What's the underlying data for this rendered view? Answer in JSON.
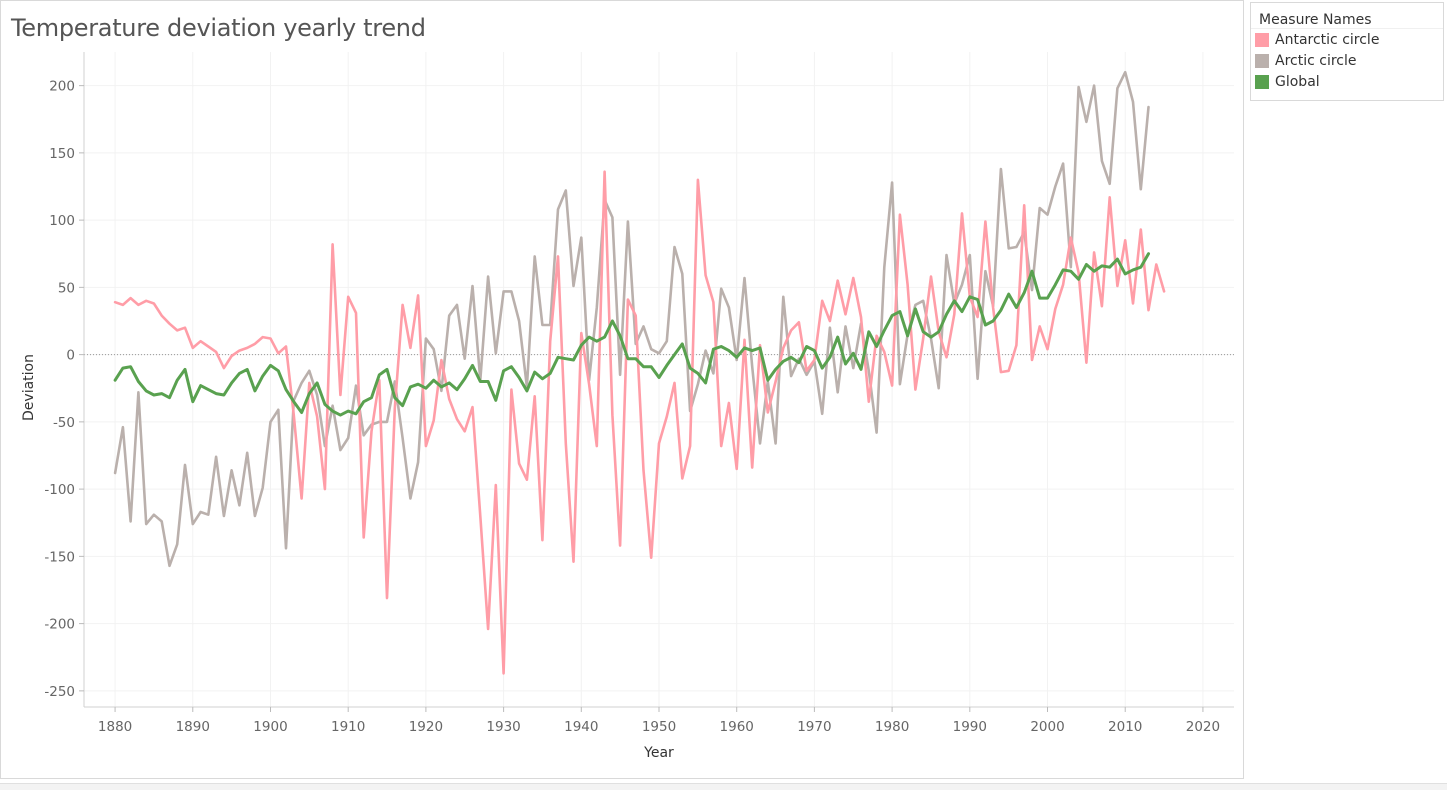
{
  "chart_data": {
    "type": "line",
    "title": "Temperature deviation yearly trend",
    "xlabel": "Year",
    "ylabel": "Deviation",
    "xlim": [
      1876,
      2024
    ],
    "ylim": [
      -262,
      225
    ],
    "x_ticks": [
      1880,
      1890,
      1900,
      1910,
      1920,
      1930,
      1940,
      1950,
      1960,
      1970,
      1980,
      1990,
      2000,
      2010,
      2020
    ],
    "y_ticks": [
      -250,
      -200,
      -150,
      -100,
      -50,
      0,
      50,
      100,
      150,
      200
    ],
    "grid": true,
    "zero_line": true,
    "legend": {
      "title": "Measure Names",
      "position": "right"
    },
    "x_start": 1880,
    "series": [
      {
        "name": "Antarctic circle",
        "color": "#ff9da7",
        "values": [
          39,
          37,
          42,
          37,
          40,
          38,
          29,
          23,
          18,
          20,
          5,
          10,
          6,
          2,
          -10,
          -1,
          3,
          5,
          8,
          13,
          12,
          1,
          6,
          -45,
          -107,
          -21,
          -46,
          -100,
          82,
          -30,
          43,
          31,
          -136,
          -57,
          -19,
          -181,
          -40,
          37,
          5,
          44,
          -68,
          -49,
          -4,
          -33,
          -48,
          -57,
          -39,
          -120,
          -204,
          -97,
          -237,
          -26,
          -81,
          -93,
          -31,
          -138,
          10,
          73,
          -66,
          -154,
          16,
          -22,
          -68,
          136,
          -45,
          -142,
          41,
          29,
          -86,
          -151,
          -66,
          -46,
          -21,
          -92,
          -68,
          130,
          59,
          39,
          -68,
          -36,
          -85,
          11,
          -84,
          7,
          -43,
          -20,
          5,
          18,
          24,
          -12,
          -4,
          40,
          25,
          55,
          30,
          57,
          28,
          -35,
          14,
          2,
          -23,
          104,
          52,
          -26,
          12,
          58,
          17,
          -2,
          30,
          105,
          43,
          28,
          99,
          35,
          -13,
          -12,
          7,
          111,
          -4,
          21,
          4,
          34,
          52,
          87,
          61,
          -6,
          76,
          36,
          117,
          51,
          85,
          38,
          93,
          33,
          67,
          47
        ]
      },
      {
        "name": "Arctic circle",
        "color": "#bab0ac",
        "values": [
          -88,
          -54,
          -124,
          -28,
          -126,
          -119,
          -124,
          -157,
          -141,
          -82,
          -126,
          -117,
          -119,
          -76,
          -120,
          -86,
          -112,
          -73,
          -120,
          -99,
          -50,
          -41,
          -144,
          -34,
          -21,
          -12,
          -30,
          -68,
          -38,
          -71,
          -62,
          -23,
          -60,
          -52,
          -50,
          -50,
          -20,
          -62,
          -107,
          -80,
          12,
          4,
          -27,
          29,
          37,
          -3,
          51,
          -19,
          58,
          1,
          47,
          47,
          25,
          -24,
          73,
          22,
          22,
          108,
          122,
          51,
          87,
          -19,
          35,
          115,
          102,
          -15,
          99,
          8,
          21,
          4,
          1,
          10,
          80,
          60,
          -42,
          -22,
          3,
          -14,
          49,
          35,
          -4,
          57,
          -9,
          -66,
          -20,
          -66,
          43,
          -16,
          -3,
          -15,
          -5,
          -44,
          20,
          -28,
          21,
          -10,
          23,
          -12,
          -58,
          65,
          128,
          -22,
          15,
          37,
          40,
          12,
          -25,
          74,
          38,
          52,
          74,
          -18,
          62,
          36,
          138,
          79,
          80,
          91,
          48,
          109,
          104,
          125,
          142,
          65,
          199,
          173,
          200,
          144,
          127,
          198,
          210,
          188,
          123,
          184
        ]
      },
      {
        "name": "Global",
        "color": "#59a14f",
        "values": [
          -19,
          -10,
          -9,
          -20,
          -27,
          -30,
          -29,
          -32,
          -19,
          -11,
          -35,
          -23,
          -26,
          -29,
          -30,
          -21,
          -14,
          -11,
          -27,
          -16,
          -8,
          -12,
          -26,
          -35,
          -43,
          -29,
          -21,
          -37,
          -42,
          -45,
          -42,
          -44,
          -35,
          -32,
          -15,
          -11,
          -32,
          -38,
          -24,
          -22,
          -25,
          -19,
          -24,
          -21,
          -26,
          -18,
          -8,
          -20,
          -20,
          -34,
          -12,
          -9,
          -17,
          -27,
          -13,
          -18,
          -14,
          -2,
          -3,
          -4,
          7,
          13,
          10,
          13,
          25,
          14,
          -3,
          -3,
          -9,
          -9,
          -17,
          -8,
          0,
          8,
          -10,
          -14,
          -21,
          4,
          6,
          3,
          -2,
          5,
          3,
          5,
          -19,
          -11,
          -5,
          -2,
          -6,
          6,
          3,
          -10,
          -2,
          13,
          -7,
          1,
          -11,
          17,
          6,
          18,
          29,
          32,
          14,
          34,
          17,
          13,
          17,
          30,
          40,
          32,
          43,
          41,
          22,
          25,
          33,
          45,
          35,
          46,
          62,
          42,
          42,
          52,
          63,
          62,
          56,
          67,
          62,
          66,
          65,
          71,
          60,
          63,
          65,
          75
        ]
      }
    ]
  }
}
